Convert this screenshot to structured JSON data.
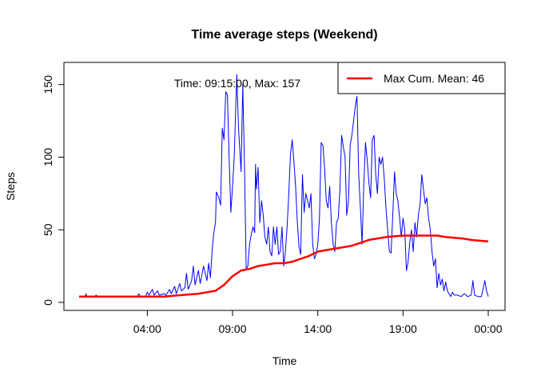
{
  "chart_data": {
    "type": "line",
    "title": "Time average steps (Weekend)",
    "xlabel": "Time",
    "ylabel": "Steps",
    "xlim_hours": [
      0.0,
      24.0
    ],
    "ylim": [
      0,
      160
    ],
    "x_ticks": [
      {
        "hour": 4,
        "label": "04:00"
      },
      {
        "hour": 9,
        "label": "09:00"
      },
      {
        "hour": 14,
        "label": "14:00"
      },
      {
        "hour": 19,
        "label": "19:00"
      },
      {
        "hour": 24,
        "label": "00:00"
      }
    ],
    "y_ticks": [
      0,
      50,
      100,
      150
    ],
    "annotation": "Time: 09:15:00, Max: 157",
    "legend": {
      "position": "top-right",
      "label": "Max Cum. Mean: 46"
    },
    "series": [
      {
        "color": "#0000ff",
        "points": [
          [
            0,
            4
          ],
          [
            0.35,
            4
          ],
          [
            0.4,
            6
          ],
          [
            0.45,
            4
          ],
          [
            0.9,
            4
          ],
          [
            1.0,
            5
          ],
          [
            1.1,
            4
          ],
          [
            3.4,
            4
          ],
          [
            3.5,
            6
          ],
          [
            3.6,
            4
          ],
          [
            3.9,
            4
          ],
          [
            4.0,
            7
          ],
          [
            4.1,
            5
          ],
          [
            4.3,
            9
          ],
          [
            4.4,
            5
          ],
          [
            4.6,
            8
          ],
          [
            4.7,
            5
          ],
          [
            5.0,
            6
          ],
          [
            5.1,
            5
          ],
          [
            5.3,
            9
          ],
          [
            5.4,
            6
          ],
          [
            5.6,
            11
          ],
          [
            5.7,
            6
          ],
          [
            5.9,
            13
          ],
          [
            6.0,
            8
          ],
          [
            6.2,
            10
          ],
          [
            6.3,
            20
          ],
          [
            6.4,
            9
          ],
          [
            6.6,
            15
          ],
          [
            6.7,
            25
          ],
          [
            6.8,
            12
          ],
          [
            7.0,
            22
          ],
          [
            7.1,
            13
          ],
          [
            7.3,
            25
          ],
          [
            7.5,
            15
          ],
          [
            7.6,
            27
          ],
          [
            7.7,
            17
          ],
          [
            7.8,
            35
          ],
          [
            7.9,
            48
          ],
          [
            8.0,
            55
          ],
          [
            8.05,
            76
          ],
          [
            8.2,
            72
          ],
          [
            8.3,
            67
          ],
          [
            8.4,
            120
          ],
          [
            8.5,
            112
          ],
          [
            8.6,
            145
          ],
          [
            8.7,
            143
          ],
          [
            8.8,
            100
          ],
          [
            8.9,
            62
          ],
          [
            9.0,
            80
          ],
          [
            9.1,
            100
          ],
          [
            9.25,
            157
          ],
          [
            9.35,
            120
          ],
          [
            9.5,
            90
          ],
          [
            9.6,
            150
          ],
          [
            9.7,
            95
          ],
          [
            9.8,
            23
          ],
          [
            9.9,
            25
          ],
          [
            10.0,
            40
          ],
          [
            10.1,
            47
          ],
          [
            10.2,
            52
          ],
          [
            10.3,
            48
          ],
          [
            10.35,
            95
          ],
          [
            10.4,
            78
          ],
          [
            10.5,
            93
          ],
          [
            10.6,
            55
          ],
          [
            10.7,
            70
          ],
          [
            10.8,
            60
          ],
          [
            10.9,
            45
          ],
          [
            11.0,
            40
          ],
          [
            11.1,
            52
          ],
          [
            11.2,
            35
          ],
          [
            11.3,
            32
          ],
          [
            11.4,
            52
          ],
          [
            11.5,
            40
          ],
          [
            11.6,
            52
          ],
          [
            11.7,
            33
          ],
          [
            11.8,
            35
          ],
          [
            11.9,
            52
          ],
          [
            12.0,
            25
          ],
          [
            12.1,
            35
          ],
          [
            12.2,
            52
          ],
          [
            12.3,
            75
          ],
          [
            12.4,
            102
          ],
          [
            12.5,
            112
          ],
          [
            12.6,
            97
          ],
          [
            12.7,
            80
          ],
          [
            12.8,
            55
          ],
          [
            12.9,
            38
          ],
          [
            13.0,
            33
          ],
          [
            13.1,
            88
          ],
          [
            13.2,
            62
          ],
          [
            13.3,
            75
          ],
          [
            13.4,
            70
          ],
          [
            13.5,
            65
          ],
          [
            13.6,
            75
          ],
          [
            13.7,
            40
          ],
          [
            13.8,
            30
          ],
          [
            13.9,
            33
          ],
          [
            14.0,
            40
          ],
          [
            14.1,
            58
          ],
          [
            14.2,
            110
          ],
          [
            14.3,
            108
          ],
          [
            14.4,
            92
          ],
          [
            14.5,
            70
          ],
          [
            14.6,
            65
          ],
          [
            14.7,
            80
          ],
          [
            14.8,
            55
          ],
          [
            14.9,
            40
          ],
          [
            15.0,
            35
          ],
          [
            15.1,
            55
          ],
          [
            15.2,
            58
          ],
          [
            15.3,
            78
          ],
          [
            15.4,
            115
          ],
          [
            15.5,
            107
          ],
          [
            15.6,
            100
          ],
          [
            15.7,
            60
          ],
          [
            15.8,
            70
          ],
          [
            15.9,
            108
          ],
          [
            16.0,
            115
          ],
          [
            16.1,
            125
          ],
          [
            16.2,
            135
          ],
          [
            16.3,
            142
          ],
          [
            16.4,
            88
          ],
          [
            16.5,
            65
          ],
          [
            16.6,
            40
          ],
          [
            16.7,
            82
          ],
          [
            16.8,
            110
          ],
          [
            16.9,
            98
          ],
          [
            17.0,
            82
          ],
          [
            17.1,
            72
          ],
          [
            17.2,
            112
          ],
          [
            17.3,
            115
          ],
          [
            17.4,
            88
          ],
          [
            17.5,
            75
          ],
          [
            17.6,
            100
          ],
          [
            17.7,
            95
          ],
          [
            17.8,
            100
          ],
          [
            17.9,
            85
          ],
          [
            18.0,
            65
          ],
          [
            18.1,
            50
          ],
          [
            18.2,
            35
          ],
          [
            18.3,
            34
          ],
          [
            18.4,
            60
          ],
          [
            18.5,
            90
          ],
          [
            18.6,
            75
          ],
          [
            18.7,
            70
          ],
          [
            18.8,
            58
          ],
          [
            18.9,
            45
          ],
          [
            19.0,
            58
          ],
          [
            19.1,
            50
          ],
          [
            19.2,
            22
          ],
          [
            19.3,
            28
          ],
          [
            19.4,
            42
          ],
          [
            19.5,
            50
          ],
          [
            19.6,
            35
          ],
          [
            19.7,
            55
          ],
          [
            19.8,
            45
          ],
          [
            19.9,
            60
          ],
          [
            20.0,
            68
          ],
          [
            20.1,
            88
          ],
          [
            20.2,
            78
          ],
          [
            20.3,
            68
          ],
          [
            20.4,
            72
          ],
          [
            20.5,
            58
          ],
          [
            20.6,
            50
          ],
          [
            20.7,
            35
          ],
          [
            20.8,
            25
          ],
          [
            20.9,
            30
          ],
          [
            21.0,
            10
          ],
          [
            21.1,
            20
          ],
          [
            21.2,
            12
          ],
          [
            21.3,
            16
          ],
          [
            21.4,
            8
          ],
          [
            21.5,
            14
          ],
          [
            21.6,
            8
          ],
          [
            21.7,
            6
          ],
          [
            21.8,
            4
          ],
          [
            21.9,
            7
          ],
          [
            22.0,
            5
          ],
          [
            22.2,
            5
          ],
          [
            22.4,
            4
          ],
          [
            22.6,
            6
          ],
          [
            22.8,
            4
          ],
          [
            23.0,
            5
          ],
          [
            23.1,
            15
          ],
          [
            23.2,
            5
          ],
          [
            23.4,
            4
          ],
          [
            23.6,
            4
          ],
          [
            23.8,
            15
          ],
          [
            23.9,
            8
          ],
          [
            24.0,
            4
          ]
        ]
      },
      {
        "color": "#ff0000",
        "points": [
          [
            0,
            4
          ],
          [
            2,
            4
          ],
          [
            4,
            4
          ],
          [
            5,
            4
          ],
          [
            5.5,
            4.5
          ],
          [
            6,
            5
          ],
          [
            6.5,
            5.5
          ],
          [
            7,
            6
          ],
          [
            7.5,
            7
          ],
          [
            8,
            8
          ],
          [
            8.5,
            12
          ],
          [
            9,
            18
          ],
          [
            9.5,
            22
          ],
          [
            10,
            23
          ],
          [
            10.5,
            25
          ],
          [
            11,
            26
          ],
          [
            11.5,
            27
          ],
          [
            12,
            27
          ],
          [
            12.5,
            28
          ],
          [
            13,
            30
          ],
          [
            13.5,
            32
          ],
          [
            14,
            35
          ],
          [
            14.5,
            36
          ],
          [
            15,
            37
          ],
          [
            15.5,
            38
          ],
          [
            16,
            39
          ],
          [
            16.5,
            41
          ],
          [
            17,
            43
          ],
          [
            17.5,
            44
          ],
          [
            18,
            45
          ],
          [
            18.5,
            45.5
          ],
          [
            19,
            46
          ],
          [
            19.5,
            46
          ],
          [
            20,
            46
          ],
          [
            20.5,
            46
          ],
          [
            21,
            46
          ],
          [
            21.5,
            45
          ],
          [
            22,
            44.5
          ],
          [
            22.5,
            44
          ],
          [
            23,
            43
          ],
          [
            23.5,
            42.5
          ],
          [
            24,
            42
          ]
        ]
      }
    ]
  }
}
